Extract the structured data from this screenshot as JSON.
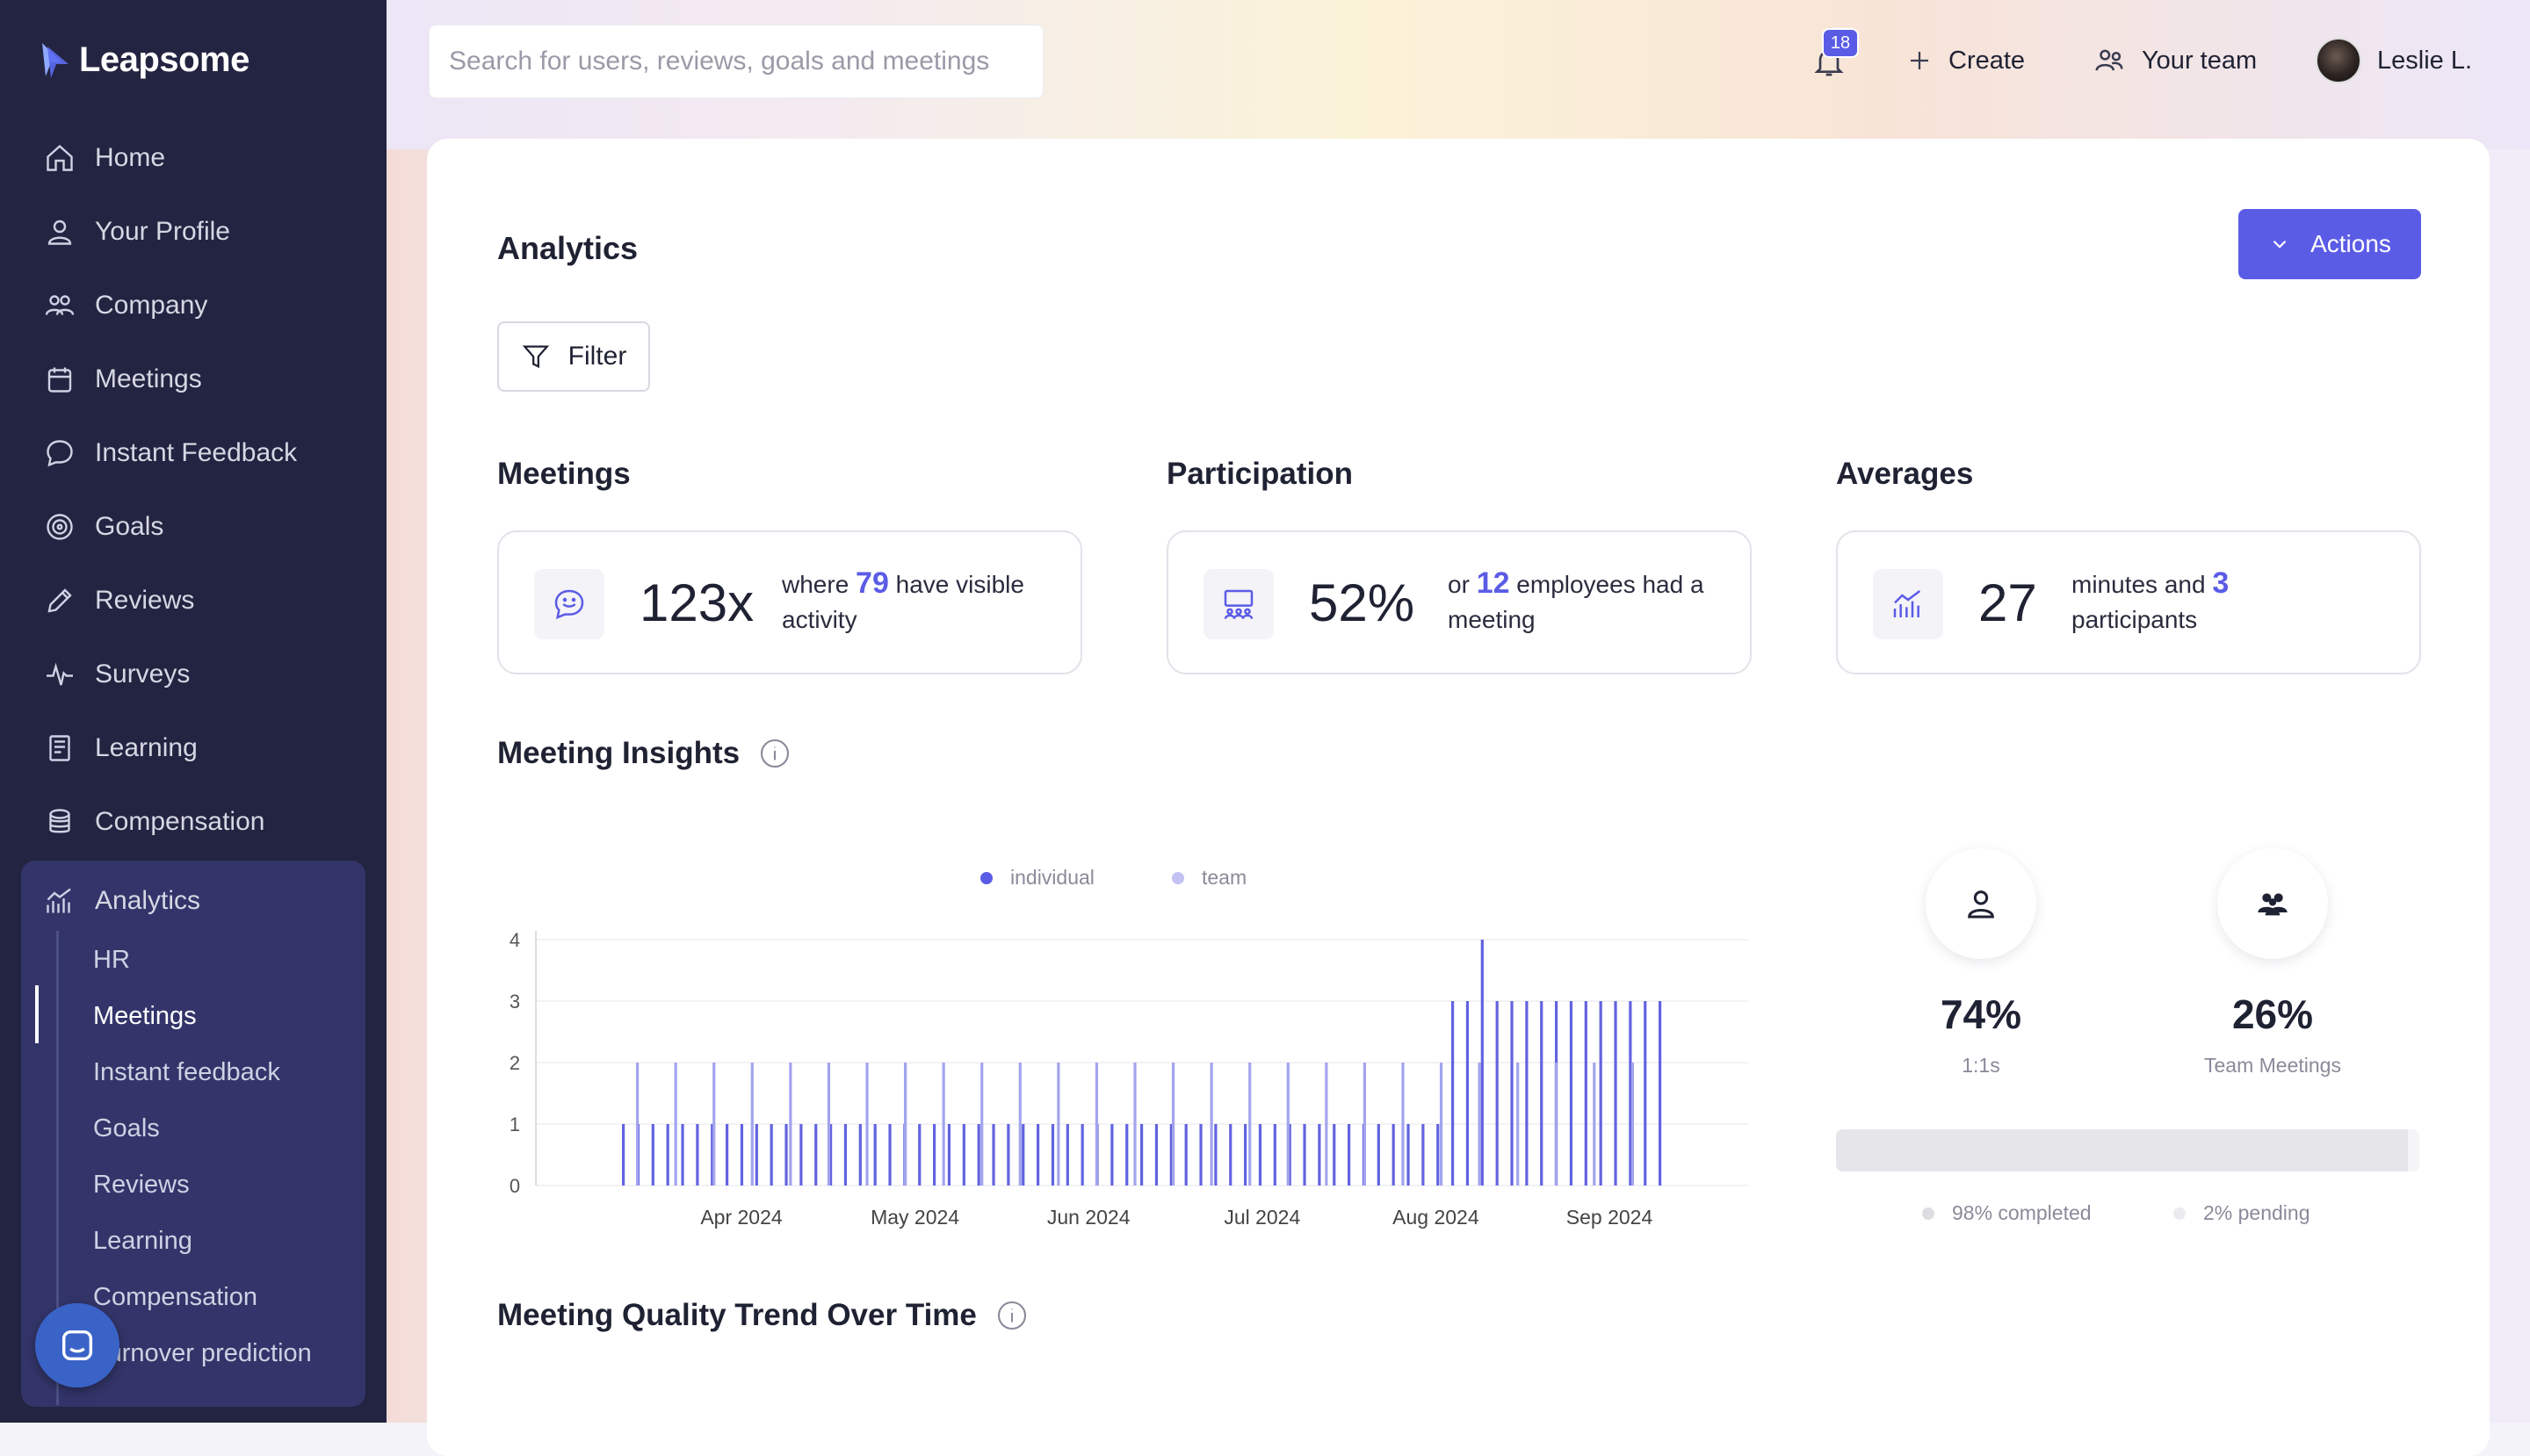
{
  "app": {
    "brand": "Leapsome"
  },
  "search": {
    "placeholder": "Search for users, reviews, goals and meetings"
  },
  "topbar": {
    "notifications_count": "18",
    "create_label": "Create",
    "team_label": "Your team",
    "user_name": "Leslie L."
  },
  "sidebar": {
    "items": [
      {
        "label": "Home",
        "icon": "home-icon"
      },
      {
        "label": "Your Profile",
        "icon": "user-icon"
      },
      {
        "label": "Company",
        "icon": "company-icon"
      },
      {
        "label": "Meetings",
        "icon": "calendar-icon"
      },
      {
        "label": "Instant Feedback",
        "icon": "chat-icon"
      },
      {
        "label": "Goals",
        "icon": "target-icon"
      },
      {
        "label": "Reviews",
        "icon": "pencil-icon"
      },
      {
        "label": "Surveys",
        "icon": "pulse-icon"
      },
      {
        "label": "Learning",
        "icon": "book-icon"
      },
      {
        "label": "Compensation",
        "icon": "coins-icon"
      }
    ],
    "analytics": {
      "label": "Analytics",
      "subitems": [
        "HR",
        "Meetings",
        "Instant feedback",
        "Goals",
        "Reviews",
        "Learning",
        "Compensation",
        "Turnover prediction"
      ],
      "active": "Meetings"
    }
  },
  "page": {
    "title": "Analytics",
    "actions_label": "Actions",
    "filter_label": "Filter"
  },
  "stats": {
    "meetings": {
      "heading": "Meetings",
      "value": "123x",
      "text_pre": "where",
      "highlight": "79",
      "text_post": "have visible activity"
    },
    "participation": {
      "heading": "Participation",
      "value": "52%",
      "text_pre": "or",
      "highlight": "12",
      "text_post": "employees had a meeting"
    },
    "averages": {
      "heading": "Averages",
      "value": "27",
      "text_pre": "minutes and",
      "highlight": "3",
      "text_post": "participants"
    }
  },
  "insights": {
    "heading": "Meeting Insights",
    "types": [
      {
        "pct": "74%",
        "label": "1:1s",
        "icon": "person-icon"
      },
      {
        "pct": "26%",
        "label": "Team Meetings",
        "icon": "group-icon"
      }
    ],
    "completion": {
      "completed_fraction": 0.98,
      "completed_label": "98% completed",
      "pending_label": "2% pending"
    }
  },
  "quality": {
    "heading": "Meeting Quality Trend Over Time"
  },
  "colors": {
    "accent": "#5b5ce6",
    "team": "#a9a9ee",
    "sidebar_bg": "#232441"
  },
  "chart_data": {
    "type": "bar",
    "title": "",
    "legend": [
      "individual",
      "team"
    ],
    "legend_position": "top",
    "ylim": [
      0,
      4
    ],
    "yticks": [
      0,
      1,
      2,
      3,
      4
    ],
    "xlabels": [
      "Apr 2024",
      "May 2024",
      "Jun 2024",
      "Jul 2024",
      "Aug 2024",
      "Sep 2024"
    ],
    "grid": true,
    "series": [
      {
        "name": "individual",
        "values": [
          1,
          1,
          1,
          1,
          1,
          1,
          1,
          1,
          1,
          1,
          1,
          1,
          1,
          1,
          1,
          1,
          1,
          1,
          1,
          1,
          1,
          1,
          1,
          1,
          1,
          1,
          1,
          1,
          1,
          1,
          1,
          1,
          1,
          1,
          1,
          1,
          1,
          1,
          1,
          1,
          1,
          1,
          1,
          1,
          1,
          1,
          1,
          1,
          1,
          1,
          1,
          1,
          1,
          1,
          1,
          1,
          3,
          3,
          4,
          3,
          3,
          3,
          3,
          3,
          3,
          3,
          3,
          3,
          3,
          3,
          3
        ]
      },
      {
        "name": "team",
        "values": [
          2,
          2,
          2,
          2,
          2,
          2,
          2,
          2,
          2,
          2,
          2,
          2,
          2,
          2,
          2,
          2,
          2,
          2,
          2,
          2,
          2,
          2,
          2,
          2,
          2,
          2,
          2
        ]
      }
    ]
  }
}
